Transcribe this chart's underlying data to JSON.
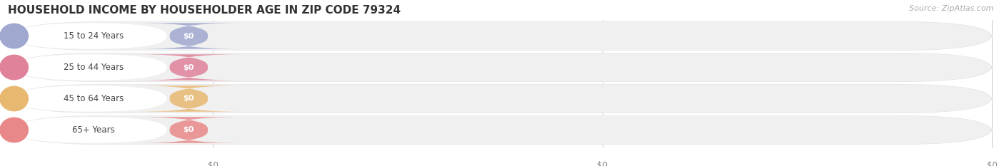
{
  "title": "HOUSEHOLD INCOME BY HOUSEHOLDER AGE IN ZIP CODE 79324",
  "source": "Source: ZipAtlas.com",
  "categories": [
    "15 to 24 Years",
    "25 to 44 Years",
    "45 to 64 Years",
    "65+ Years"
  ],
  "values": [
    0,
    0,
    0,
    0
  ],
  "bar_colors": [
    "#a0a8d0",
    "#e0829a",
    "#e8b870",
    "#e88888"
  ],
  "bar_bg_color": "#eeeeee",
  "title_fontsize": 11,
  "source_fontsize": 8,
  "background_color": "#ffffff",
  "ylabel_color": "#555555",
  "tick_color": "#888888"
}
